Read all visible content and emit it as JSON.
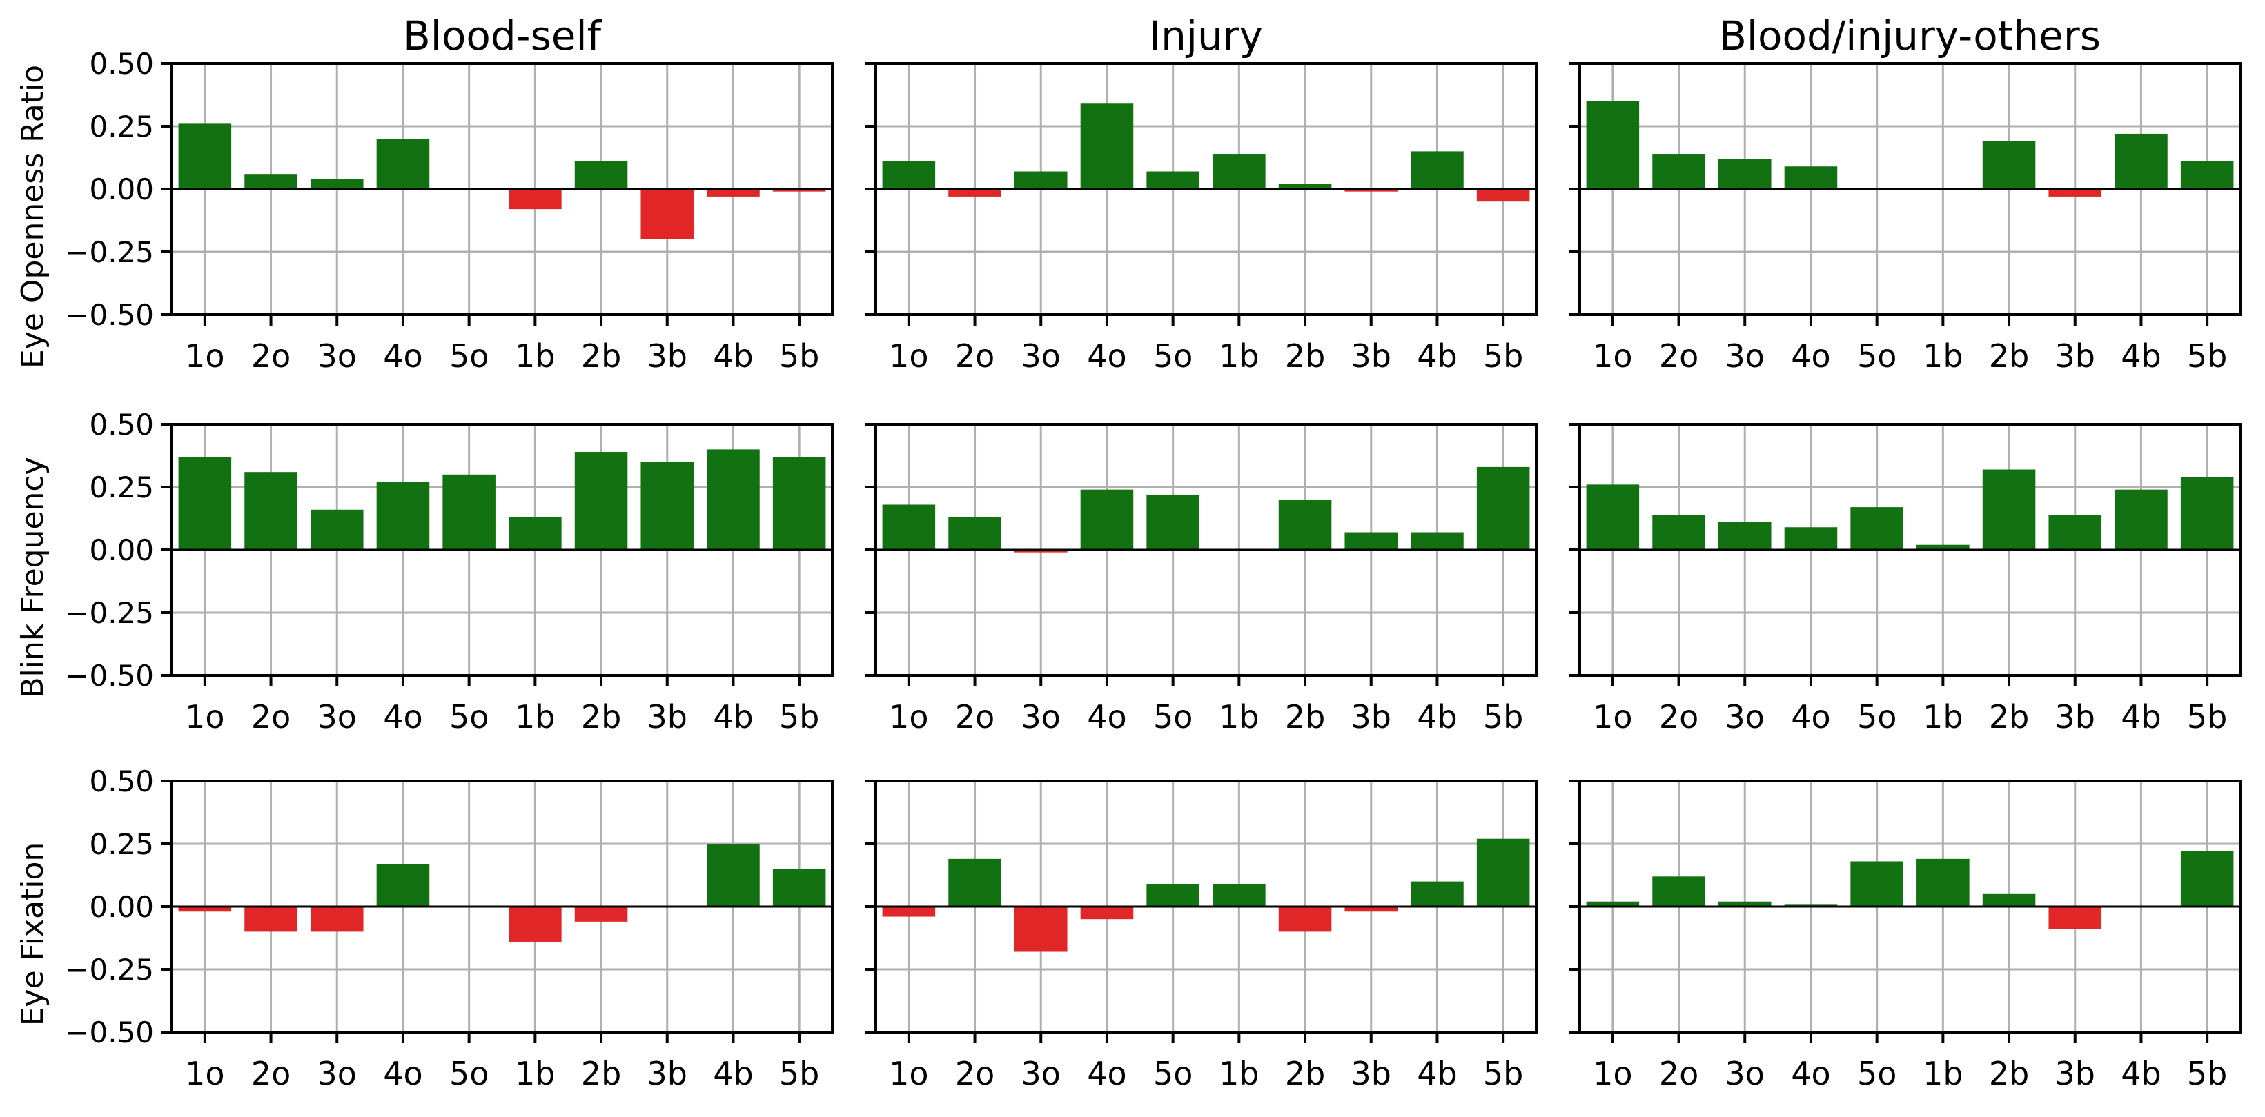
{
  "colors": {
    "positive": "#127212",
    "negative": "#e02626",
    "grid": "#b0b0b0",
    "axis": "#000000"
  },
  "chart_data": {
    "type": "bar",
    "grid": true,
    "categories": [
      "1o",
      "2o",
      "3o",
      "4o",
      "5o",
      "1b",
      "2b",
      "3b",
      "4b",
      "5b"
    ],
    "columns": [
      "Blood-self",
      "Injury",
      "Blood/injury-others"
    ],
    "rows": [
      "Eye Openness Ratio",
      "Blink Frequency",
      "Eye Fixation"
    ],
    "ylim": [
      -0.5,
      0.5
    ],
    "yticks": [
      0.5,
      0.25,
      0,
      -0.25,
      -0.5
    ],
    "ytick_labels": [
      "0.50",
      "0.25",
      "0.00",
      "−0.25",
      "−0.50"
    ],
    "panels": [
      {
        "title": "Blood-self",
        "ylabel": "Eye Openness Ratio",
        "values": [
          0.26,
          0.06,
          0.04,
          0.2,
          0.0,
          -0.08,
          0.11,
          -0.2,
          -0.03,
          -0.01
        ]
      },
      {
        "title": "Injury",
        "ylabel": "",
        "values": [
          0.11,
          -0.03,
          0.07,
          0.34,
          0.07,
          0.14,
          0.02,
          -0.01,
          0.15,
          -0.05
        ]
      },
      {
        "title": "Blood/injury-others",
        "ylabel": "",
        "values": [
          0.35,
          0.14,
          0.12,
          0.09,
          0.0,
          0.0,
          0.19,
          -0.03,
          0.22,
          0.11
        ]
      },
      {
        "title": "",
        "ylabel": "Blink Frequency",
        "values": [
          0.37,
          0.31,
          0.16,
          0.27,
          0.3,
          0.13,
          0.39,
          0.35,
          0.4,
          0.37
        ]
      },
      {
        "title": "",
        "ylabel": "",
        "values": [
          0.18,
          0.13,
          -0.01,
          0.24,
          0.22,
          0.0,
          0.2,
          0.07,
          0.07,
          0.33
        ]
      },
      {
        "title": "",
        "ylabel": "",
        "values": [
          0.26,
          0.14,
          0.11,
          0.09,
          0.17,
          0.02,
          0.32,
          0.14,
          0.24,
          0.29
        ]
      },
      {
        "title": "",
        "ylabel": "Eye Fixation",
        "values": [
          -0.02,
          -0.1,
          -0.1,
          0.17,
          0.0,
          -0.14,
          -0.06,
          0.0,
          0.25,
          0.15
        ]
      },
      {
        "title": "",
        "ylabel": "",
        "values": [
          -0.04,
          0.19,
          -0.18,
          -0.05,
          0.09,
          0.09,
          -0.1,
          -0.02,
          0.1,
          0.27
        ]
      },
      {
        "title": "",
        "ylabel": "",
        "values": [
          0.02,
          0.12,
          0.02,
          0.01,
          0.18,
          0.19,
          0.05,
          -0.09,
          0.0,
          0.22
        ]
      }
    ]
  }
}
